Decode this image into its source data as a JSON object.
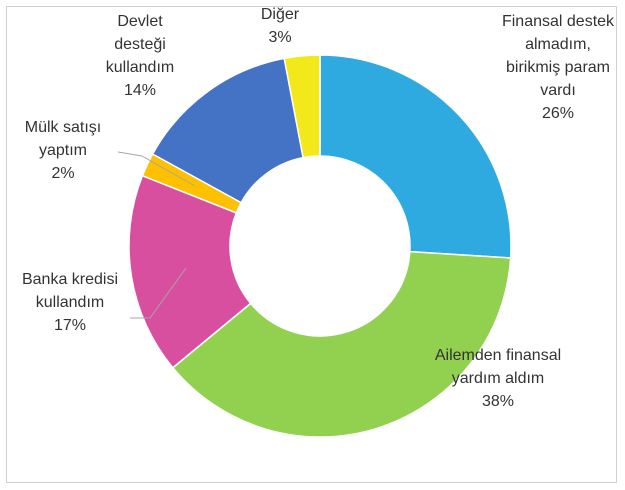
{
  "chart_data": {
    "type": "donut",
    "categories": [
      "Finansal destek almadım, birikmiş param vardı",
      "Ailemden finansal yardım aldım",
      "Banka kredisi kullandım",
      "Mülk satışı yaptım",
      "Devlet desteği kullandım",
      "Diğer"
    ],
    "values": [
      26,
      38,
      17,
      2,
      14,
      3
    ],
    "value_labels": [
      "26%",
      "38%",
      "17%",
      "2%",
      "14%",
      "3%"
    ],
    "colors": [
      "#2eaae1",
      "#92d050",
      "#d94f9f",
      "#ffc000",
      "#4472c4",
      "#f2e81a"
    ]
  }
}
